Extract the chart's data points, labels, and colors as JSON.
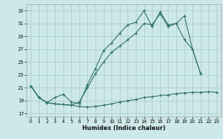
{
  "xlabel": "Humidex (Indice chaleur)",
  "background_color": "#cde8e8",
  "grid_color": "#aacccc",
  "line_color": "#2a6e62",
  "xlim": [
    -0.5,
    23.5
  ],
  "ylim": [
    16.5,
    34.0
  ],
  "xticks": [
    0,
    1,
    2,
    3,
    4,
    5,
    6,
    7,
    8,
    9,
    10,
    11,
    12,
    13,
    14,
    15,
    16,
    17,
    18,
    19,
    20,
    21,
    22,
    23
  ],
  "yticks": [
    17,
    19,
    21,
    23,
    25,
    27,
    29,
    31,
    33
  ],
  "line1_x": [
    0,
    1,
    2,
    3,
    4,
    5,
    6,
    7,
    8,
    9,
    10,
    11,
    12,
    13,
    14,
    15,
    16,
    17,
    18,
    19,
    20,
    21,
    22,
    23
  ],
  "line1_y": [
    21.3,
    19.5,
    18.7,
    18.5,
    18.4,
    18.3,
    18.1,
    18.0,
    18.1,
    18.3,
    18.5,
    18.8,
    19.0,
    19.2,
    19.5,
    19.6,
    19.8,
    19.9,
    20.1,
    20.2,
    20.3,
    20.3,
    20.4,
    20.3
  ],
  "line2_x": [
    0,
    1,
    2,
    3,
    4,
    5,
    6,
    7,
    8,
    9,
    10,
    11,
    12,
    13,
    14,
    15,
    16,
    17,
    18,
    19,
    20,
    21
  ],
  "line2_y": [
    21.3,
    19.5,
    18.7,
    19.5,
    20.0,
    18.8,
    18.5,
    21.5,
    24.0,
    26.8,
    28.0,
    29.5,
    30.8,
    31.2,
    33.0,
    30.5,
    32.8,
    30.8,
    31.0,
    32.2,
    27.0,
    23.2
  ],
  "line3_x": [
    0,
    1,
    2,
    3,
    4,
    5,
    6,
    7,
    8,
    9,
    10,
    11,
    12,
    13,
    14,
    15,
    16,
    17,
    18,
    19,
    20,
    21
  ],
  "line3_y": [
    21.3,
    19.5,
    18.7,
    18.5,
    18.4,
    18.3,
    18.8,
    21.0,
    23.2,
    25.0,
    26.5,
    27.5,
    28.5,
    29.5,
    31.0,
    30.8,
    32.5,
    30.5,
    31.0,
    28.5,
    27.0,
    23.2
  ]
}
